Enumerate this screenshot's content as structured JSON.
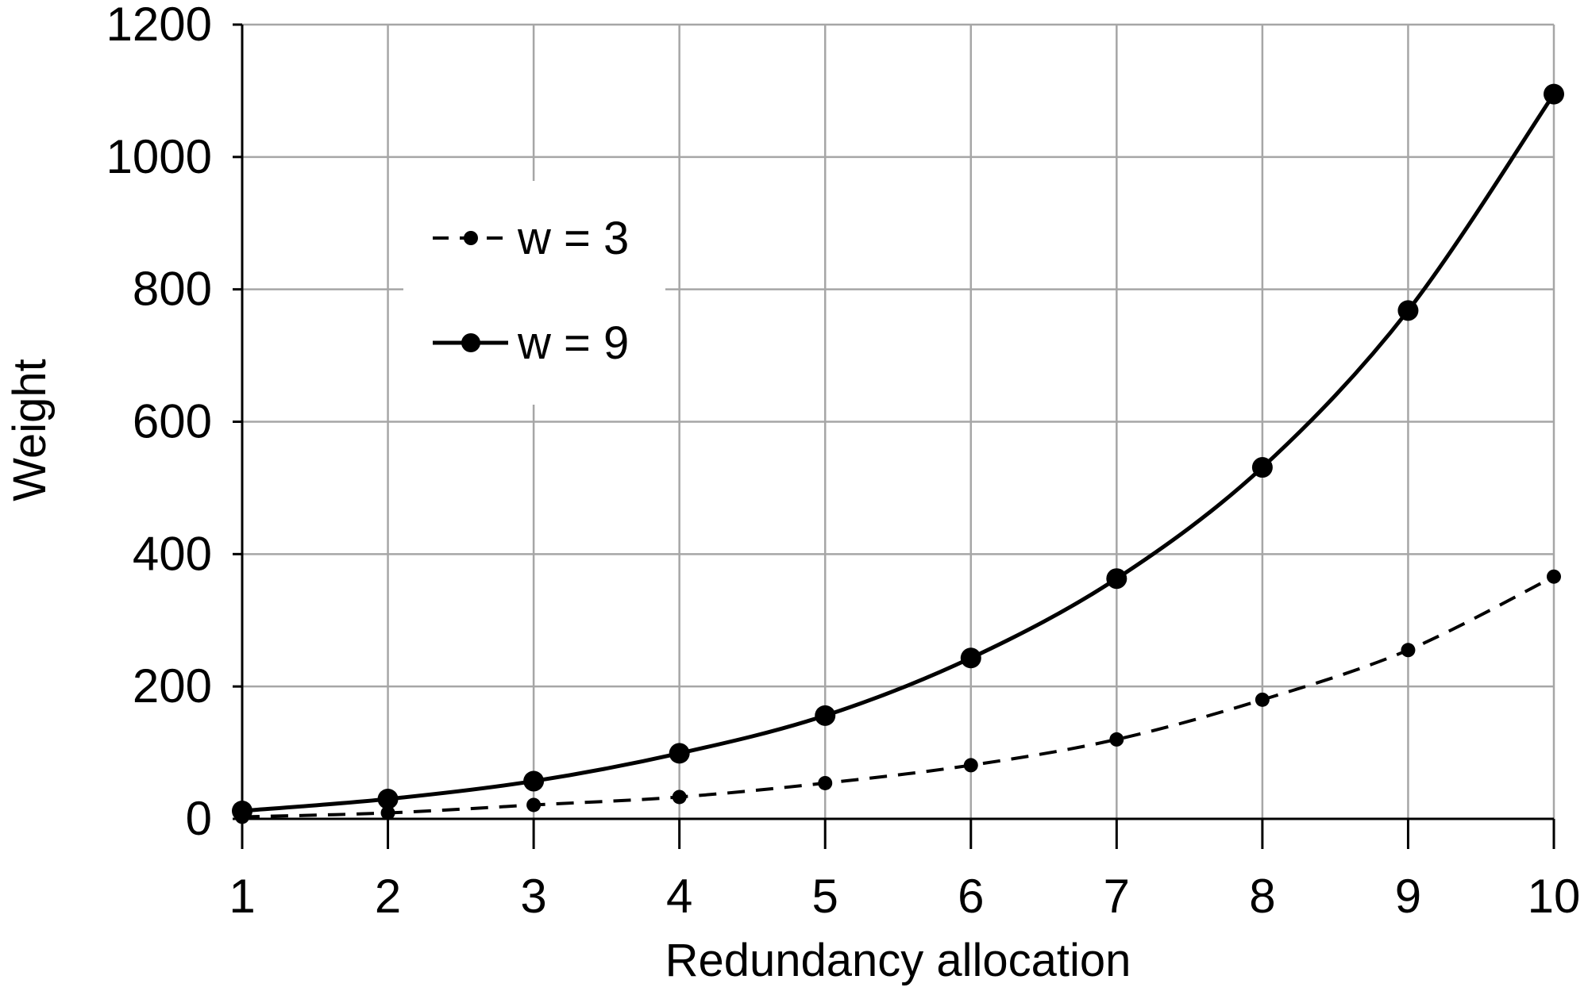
{
  "chart_data": {
    "type": "line",
    "title": "",
    "xlabel": "Redundancy allocation",
    "ylabel": "Weight",
    "x": [
      1,
      2,
      3,
      4,
      5,
      6,
      7,
      8,
      9,
      10
    ],
    "xlim": [
      1,
      10
    ],
    "ylim": [
      0,
      1200
    ],
    "x_ticks": [
      "1",
      "2",
      "3",
      "4",
      "5",
      "6",
      "7",
      "8",
      "9",
      "10"
    ],
    "y_ticks": [
      "0",
      "200",
      "400",
      "600",
      "800",
      "1000",
      "1200"
    ],
    "grid": true,
    "legend_position": "upper-left",
    "series": [
      {
        "name": "w = 3",
        "style": "dashed",
        "marker": "small-dot",
        "color": "#000000",
        "values": [
          3,
          9,
          21,
          33,
          54,
          81,
          120,
          180,
          255,
          366
        ]
      },
      {
        "name": "w = 9",
        "style": "solid",
        "marker": "dot",
        "color": "#000000",
        "values": [
          12,
          30,
          57,
          99,
          156,
          243,
          363,
          531,
          768,
          1095
        ]
      }
    ]
  }
}
